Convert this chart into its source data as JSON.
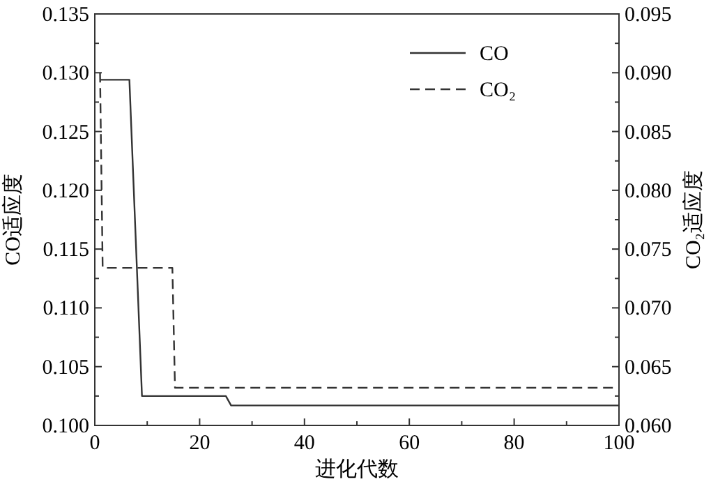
{
  "chart_data": {
    "type": "line",
    "xlabel": "进化代数",
    "ylabel": "CO适应度",
    "y2label": "CO₂适应度",
    "xlim": [
      0,
      100
    ],
    "xticks": [
      0,
      20,
      40,
      60,
      80,
      100
    ],
    "ylim": [
      0.1,
      0.135
    ],
    "yticks": [
      {
        "value": 0.1,
        "label": "0.100"
      },
      {
        "value": 0.105,
        "label": "0.105"
      },
      {
        "value": 0.11,
        "label": "0.110"
      },
      {
        "value": 0.115,
        "label": "0.115"
      },
      {
        "value": 0.12,
        "label": "0.120"
      },
      {
        "value": 0.125,
        "label": "0.125"
      },
      {
        "value": 0.13,
        "label": "0.130"
      },
      {
        "value": 0.135,
        "label": "0.135"
      }
    ],
    "y2lim": [
      0.06,
      0.095
    ],
    "y2ticks": [
      {
        "value": 0.06,
        "label": "0.060"
      },
      {
        "value": 0.065,
        "label": "0.065"
      },
      {
        "value": 0.07,
        "label": "0.070"
      },
      {
        "value": 0.075,
        "label": "0.075"
      },
      {
        "value": 0.08,
        "label": "0.080"
      },
      {
        "value": 0.085,
        "label": "0.085"
      },
      {
        "value": 0.09,
        "label": "0.090"
      },
      {
        "value": 0.095,
        "label": "0.095"
      }
    ],
    "legend": "top right",
    "grid": false,
    "series": [
      {
        "name": "CO",
        "color": "#333333",
        "line_style": "solid",
        "x": [
          1,
          6.6,
          9,
          25,
          26,
          100
        ],
        "values": [
          0.1294,
          0.1294,
          0.1025,
          0.1025,
          0.1017,
          0.1017
        ]
      },
      {
        "name": "CO₂",
        "color": "#333333",
        "line_style": "dashed",
        "axis": "y2",
        "x": [
          1,
          1.5,
          2,
          14.8,
          15.3,
          100
        ],
        "values": [
          0.09,
          0.0734,
          0.0734,
          0.0734,
          0.0632,
          0.0632
        ]
      }
    ]
  }
}
